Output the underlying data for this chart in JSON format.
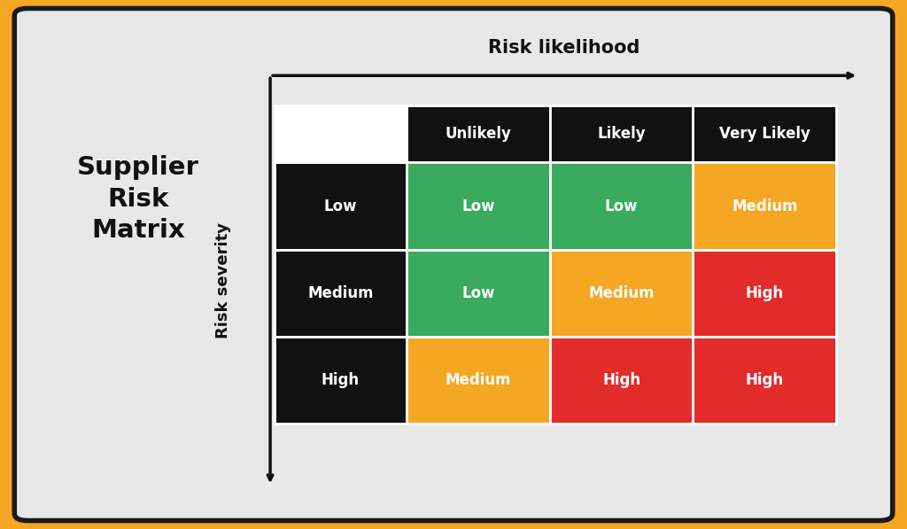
{
  "title": "Supplier\nRisk\nMatrix",
  "x_axis_label": "Risk likelihood",
  "y_axis_label": "Risk severity",
  "col_headers": [
    "Unlikely",
    "Likely",
    "Very Likely"
  ],
  "row_headers": [
    "Low",
    "Medium",
    "High"
  ],
  "matrix": [
    [
      "Low",
      "Low",
      "Medium"
    ],
    [
      "Low",
      "Medium",
      "High"
    ],
    [
      "Medium",
      "High",
      "High"
    ]
  ],
  "cell_colors": [
    [
      "#3aaa5c",
      "#3aaa5c",
      "#f5a623"
    ],
    [
      "#3aaa5c",
      "#f5a623",
      "#e32b2b"
    ],
    [
      "#f5a623",
      "#e32b2b",
      "#e32b2b"
    ]
  ],
  "header_bg": "#111111",
  "row_header_bg": "#111111",
  "header_text_color": "#ffffff",
  "cell_text_color": "#ffffff",
  "background_outer": "#f5a623",
  "background_card": "#e8e8e8",
  "title_color": "#111111",
  "axis_label_color": "#111111",
  "arrow_color": "#111111"
}
